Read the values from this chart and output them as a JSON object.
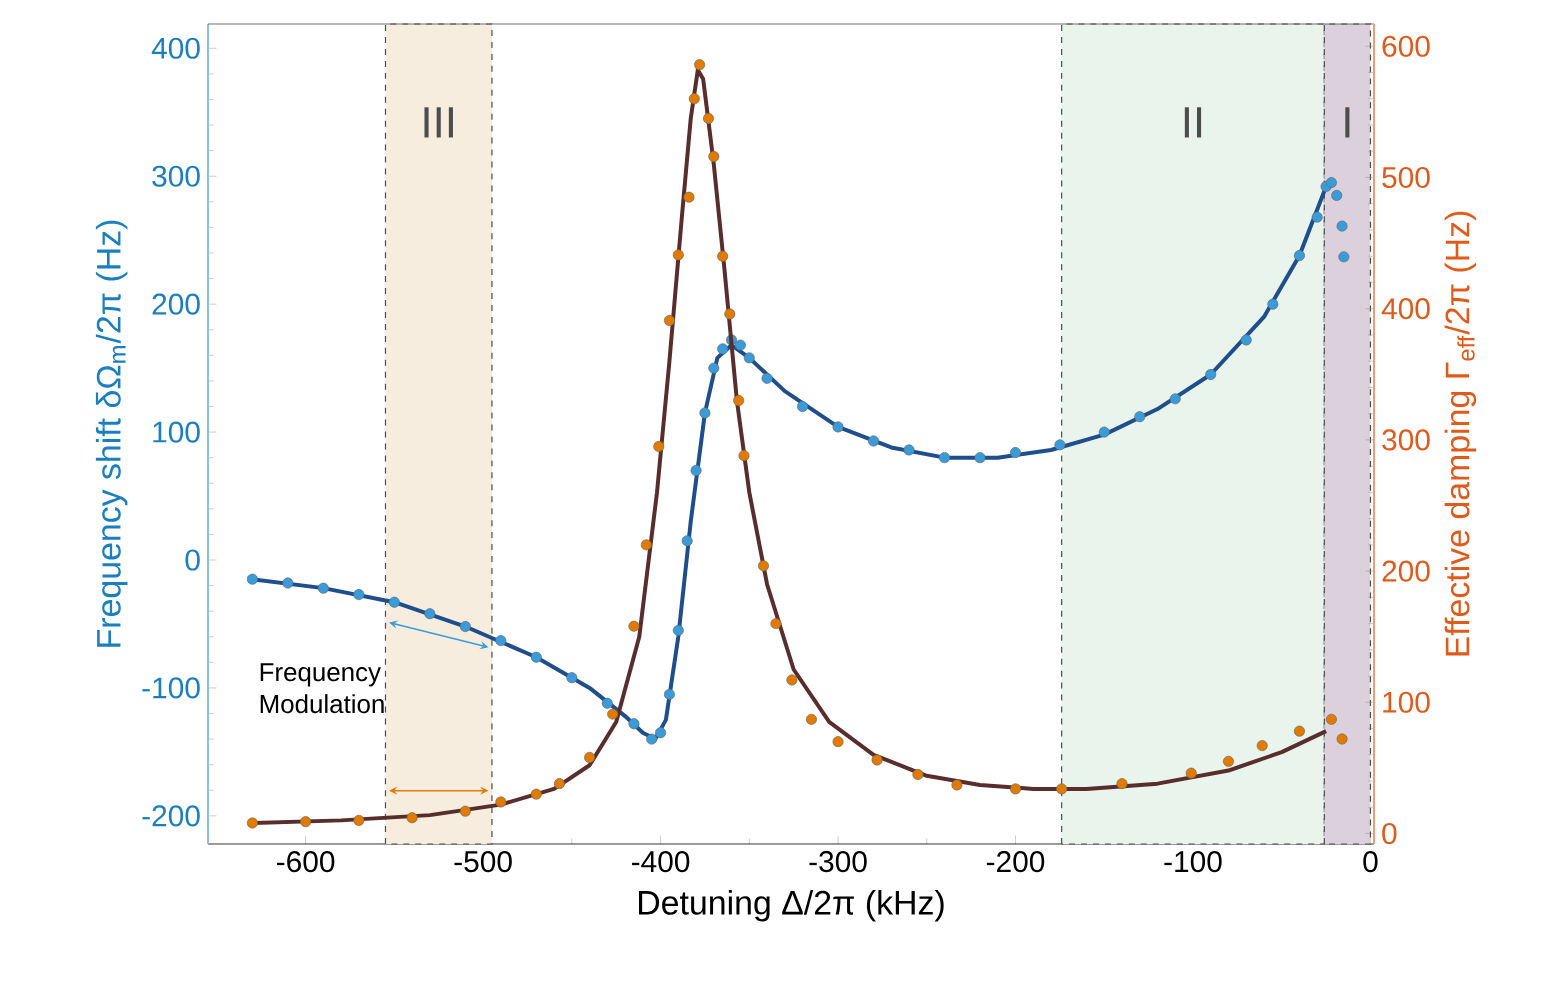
{
  "chart_data": {
    "type": "scatter",
    "xlabel": "Detuning Δ/2π (kHz)",
    "ylabel": "Frequency shift δΩ$_{m}$/2π (Hz)",
    "y2label": "Effective damping Γ$_{eff}$/2π (Hz)",
    "xlim": [
      -655,
      2
    ],
    "ylim": [
      -222,
      419
    ],
    "y2lim": [
      -8,
      617
    ],
    "xticks": [
      -600,
      -500,
      -400,
      -300,
      -200,
      -100,
      0
    ],
    "yticks": [
      -200,
      -100,
      0,
      100,
      200,
      300,
      400
    ],
    "y2ticks": [
      0,
      100,
      200,
      300,
      400,
      500,
      600
    ],
    "grid": false,
    "annotations": [
      "Frequency Modulation"
    ],
    "bands": [
      {
        "axis": "x",
        "from": -555,
        "to": -495,
        "label": "III",
        "color": "#f7eddf"
      },
      {
        "axis": "x",
        "from": -174,
        "to": -26,
        "label": "II",
        "color": "#e9f4ec"
      },
      {
        "axis": "x",
        "from": -26,
        "to": 0,
        "label": "I",
        "color": "#dbd0db"
      }
    ],
    "series": [
      {
        "marker": "circle",
        "color": "#3a9bd9",
        "x": [
          -630,
          -610,
          -590,
          -570,
          -550,
          -530,
          -510,
          -490,
          -470,
          -450,
          -430,
          -415,
          -405,
          -400,
          -395,
          -390,
          -385,
          -380,
          -375,
          -370,
          -365,
          -360,
          -355,
          -350,
          -340,
          -320,
          -300,
          -280,
          -260,
          -240,
          -220,
          -200,
          -175,
          -150,
          -130,
          -110,
          -90,
          -70,
          -55,
          -40,
          -30,
          -25,
          -22,
          -19,
          -16,
          -15
        ],
        "values": [
          -15,
          -18,
          -22,
          -27,
          -33,
          -42,
          -52,
          -63,
          -76,
          -92,
          -112,
          -128,
          -140,
          -135,
          -105,
          -55,
          15,
          70,
          115,
          150,
          165,
          172,
          168,
          158,
          142,
          120,
          104,
          93,
          86,
          80,
          80,
          84,
          90,
          100,
          112,
          126,
          145,
          172,
          200,
          238,
          268,
          292,
          295,
          285,
          261,
          237
        ]
      },
      {
        "type": "line",
        "marker": "none",
        "color": "#1f4e8c",
        "x": [
          -630,
          -590,
          -550,
          -510,
          -470,
          -440,
          -420,
          -410,
          -403,
          -397,
          -390,
          -383,
          -375,
          -368,
          -360,
          -350,
          -330,
          -300,
          -270,
          -240,
          -210,
          -180,
          -150,
          -120,
          -90,
          -60,
          -40,
          -25
        ],
        "values": [
          -15,
          -22,
          -33,
          -52,
          -76,
          -100,
          -122,
          -135,
          -140,
          -125,
          -60,
          30,
          115,
          158,
          168,
          158,
          132,
          104,
          88,
          80,
          80,
          86,
          98,
          118,
          145,
          190,
          238,
          292
        ]
      },
      {
        "axis": "y2",
        "marker": "circle",
        "color": "#e07b00",
        "x": [
          -630,
          -600,
          -570,
          -540,
          -510,
          -490,
          -470,
          -457,
          -440,
          -427,
          -415,
          -408,
          -401,
          -395,
          -390,
          -384,
          -381,
          -378,
          -373,
          -370,
          -365,
          -361,
          -356,
          -353,
          -342,
          -335,
          -326,
          -315,
          -300,
          -278,
          -255,
          -233,
          -200,
          -174,
          -140,
          -101,
          -80,
          -61,
          -40,
          -22,
          -16
        ],
        "values": [
          8,
          9,
          10,
          12,
          17,
          24,
          30,
          38,
          58,
          91,
          158,
          220,
          295,
          391,
          441,
          485,
          560,
          586,
          545,
          516,
          440,
          396,
          330,
          288,
          204,
          160,
          117,
          87,
          70,
          56,
          45,
          37,
          34,
          34,
          38,
          46,
          55,
          67,
          78,
          87,
          72
        ]
      },
      {
        "type": "line",
        "axis": "y2",
        "marker": "none",
        "color": "#5a2d2d",
        "x": [
          -630,
          -580,
          -530,
          -490,
          -460,
          -440,
          -425,
          -412,
          -402,
          -395,
          -388,
          -383,
          -379,
          -376,
          -370,
          -364,
          -357,
          -350,
          -340,
          -325,
          -305,
          -280,
          -250,
          -220,
          -190,
          -160,
          -120,
          -80,
          -50,
          -25
        ],
        "values": [
          8,
          10,
          14,
          22,
          34,
          52,
          85,
          150,
          260,
          360,
          470,
          545,
          582,
          575,
          510,
          430,
          330,
          260,
          190,
          125,
          85,
          60,
          44,
          37,
          34,
          34,
          38,
          48,
          62,
          78
        ]
      }
    ]
  }
}
